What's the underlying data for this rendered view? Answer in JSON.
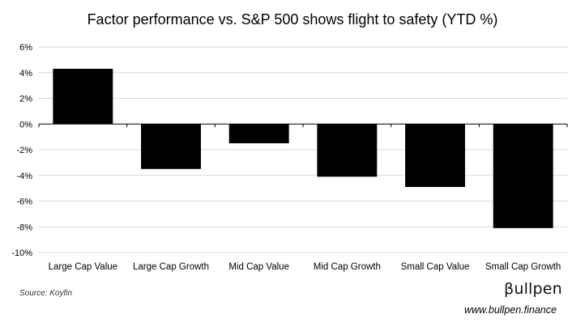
{
  "chart_data": {
    "type": "bar",
    "title": "Factor performance vs. S&P 500 shows flight to safety (YTD %)",
    "categories": [
      "Large Cap Value",
      "Large Cap Growth",
      "Mid Cap Value",
      "Mid Cap Growth",
      "Small Cap Value",
      "Small Cap Growth"
    ],
    "values": [
      4.3,
      -3.5,
      -1.5,
      -4.1,
      -4.9,
      -8.1
    ],
    "ylim": [
      -10,
      6
    ],
    "yticks": [
      -10,
      -8,
      -6,
      -4,
      -2,
      0,
      2,
      4,
      6
    ],
    "ytick_labels": [
      "-10%",
      "-8%",
      "-6%",
      "-4%",
      "-2%",
      "0%",
      "2%",
      "4%",
      "6%"
    ],
    "grid": true,
    "bar_color": "#000000",
    "grid_color": "#d9d9d9"
  },
  "footer": {
    "source": "Source: Koyfin",
    "brand": "βullpen",
    "url": "www.bullpen.finance"
  }
}
